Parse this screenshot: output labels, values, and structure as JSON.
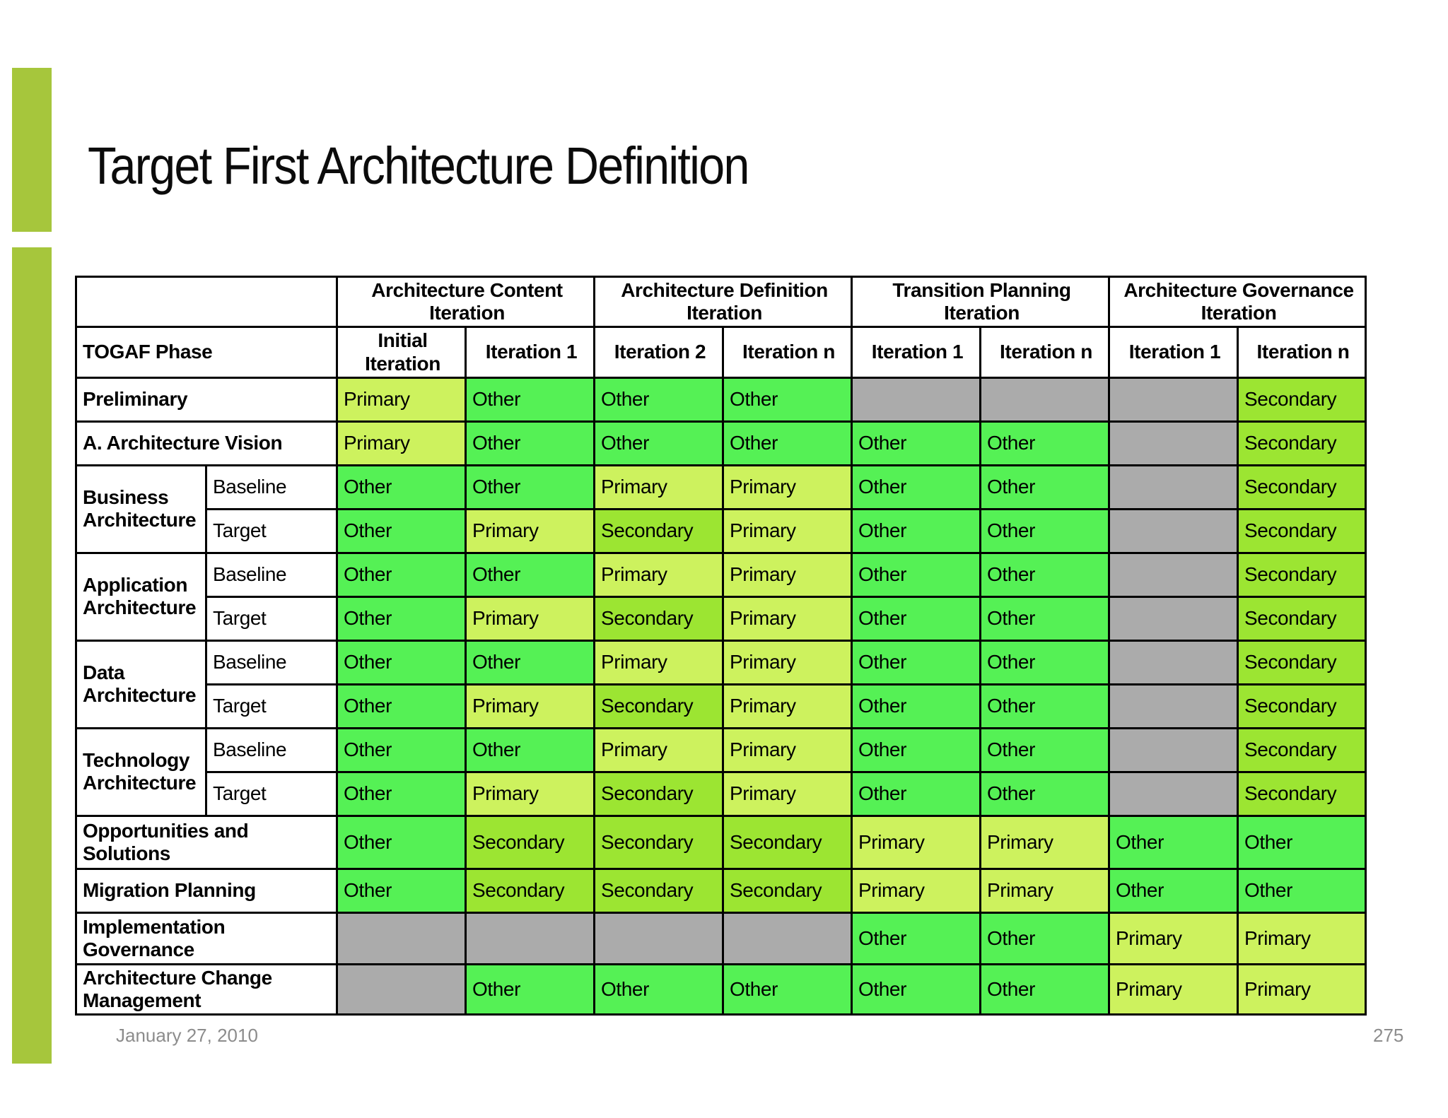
{
  "slide": {
    "title": "Target First Architecture Definition",
    "footer_date": "January 27, 2010",
    "page_number": "275"
  },
  "colors": {
    "accent_bar": "#A6C63C",
    "other": "#55F155",
    "primary": "#CDF25E",
    "secondary": "#9CE532",
    "empty": "#ABABAB",
    "border": "#000000",
    "footer_text": "#8C8C8C"
  },
  "table": {
    "corner_label": "",
    "phase_header": "TOGAF Phase",
    "groups": [
      {
        "label": "Architecture Content Iteration",
        "columns": [
          "Initial Iteration",
          "Iteration 1"
        ]
      },
      {
        "label": "Architecture Definition Iteration",
        "columns": [
          "Iteration 2",
          "Iteration n"
        ]
      },
      {
        "label": "Transition Planning Iteration",
        "columns": [
          "Iteration 1",
          "Iteration n"
        ]
      },
      {
        "label": "Architecture Governance Iteration",
        "columns": [
          "Iteration 1",
          "Iteration n"
        ]
      }
    ],
    "legend_note": "",
    "rows": [
      {
        "label": "Preliminary",
        "sub": null,
        "cells": [
          "Primary",
          "Other",
          "Other",
          "Other",
          "",
          "",
          "",
          "Secondary"
        ]
      },
      {
        "label": "A. Architecture Vision",
        "sub": null,
        "cells": [
          "Primary",
          "Other",
          "Other",
          "Other",
          "Other",
          "Other",
          "",
          "Secondary"
        ]
      },
      {
        "label": "Business Architecture",
        "sub": "Baseline",
        "cells": [
          "Other",
          "Other",
          "Primary",
          "Primary",
          "Other",
          "Other",
          "",
          "Secondary"
        ]
      },
      {
        "label": "Business Architecture",
        "sub": "Target",
        "cells": [
          "Other",
          "Primary",
          "Secondary",
          "Primary",
          "Other",
          "Other",
          "",
          "Secondary"
        ]
      },
      {
        "label": "Application Architecture",
        "sub": "Baseline",
        "cells": [
          "Other",
          "Other",
          "Primary",
          "Primary",
          "Other",
          "Other",
          "",
          "Secondary"
        ]
      },
      {
        "label": "Application Architecture",
        "sub": "Target",
        "cells": [
          "Other",
          "Primary",
          "Secondary",
          "Primary",
          "Other",
          "Other",
          "",
          "Secondary"
        ]
      },
      {
        "label": "Data Architecture",
        "sub": "Baseline",
        "cells": [
          "Other",
          "Other",
          "Primary",
          "Primary",
          "Other",
          "Other",
          "",
          "Secondary"
        ]
      },
      {
        "label": "Data Architecture",
        "sub": "Target",
        "cells": [
          "Other",
          "Primary",
          "Secondary",
          "Primary",
          "Other",
          "Other",
          "",
          "Secondary"
        ]
      },
      {
        "label": "Technology Architecture",
        "sub": "Baseline",
        "cells": [
          "Other",
          "Other",
          "Primary",
          "Primary",
          "Other",
          "Other",
          "",
          "Secondary"
        ]
      },
      {
        "label": "Technology Architecture",
        "sub": "Target",
        "cells": [
          "Other",
          "Primary",
          "Secondary",
          "Primary",
          "Other",
          "Other",
          "",
          "Secondary"
        ]
      },
      {
        "label": "Opportunities and Solutions",
        "sub": null,
        "cells": [
          "Other",
          "Secondary",
          "Secondary",
          "Secondary",
          "Primary",
          "Primary",
          "Other",
          "Other"
        ]
      },
      {
        "label": "Migration Planning",
        "sub": null,
        "cells": [
          "Other",
          "Secondary",
          "Secondary",
          "Secondary",
          "Primary",
          "Primary",
          "Other",
          "Other"
        ]
      },
      {
        "label": "Implementation Governance",
        "sub": null,
        "cells": [
          "",
          "",
          "",
          "",
          "Other",
          "Other",
          "Primary",
          "Primary"
        ]
      },
      {
        "label": "Architecture Change Management",
        "sub": null,
        "cells": [
          "",
          "Other",
          "Other",
          "Other",
          "Other",
          "Other",
          "Primary",
          "Primary"
        ]
      }
    ]
  }
}
